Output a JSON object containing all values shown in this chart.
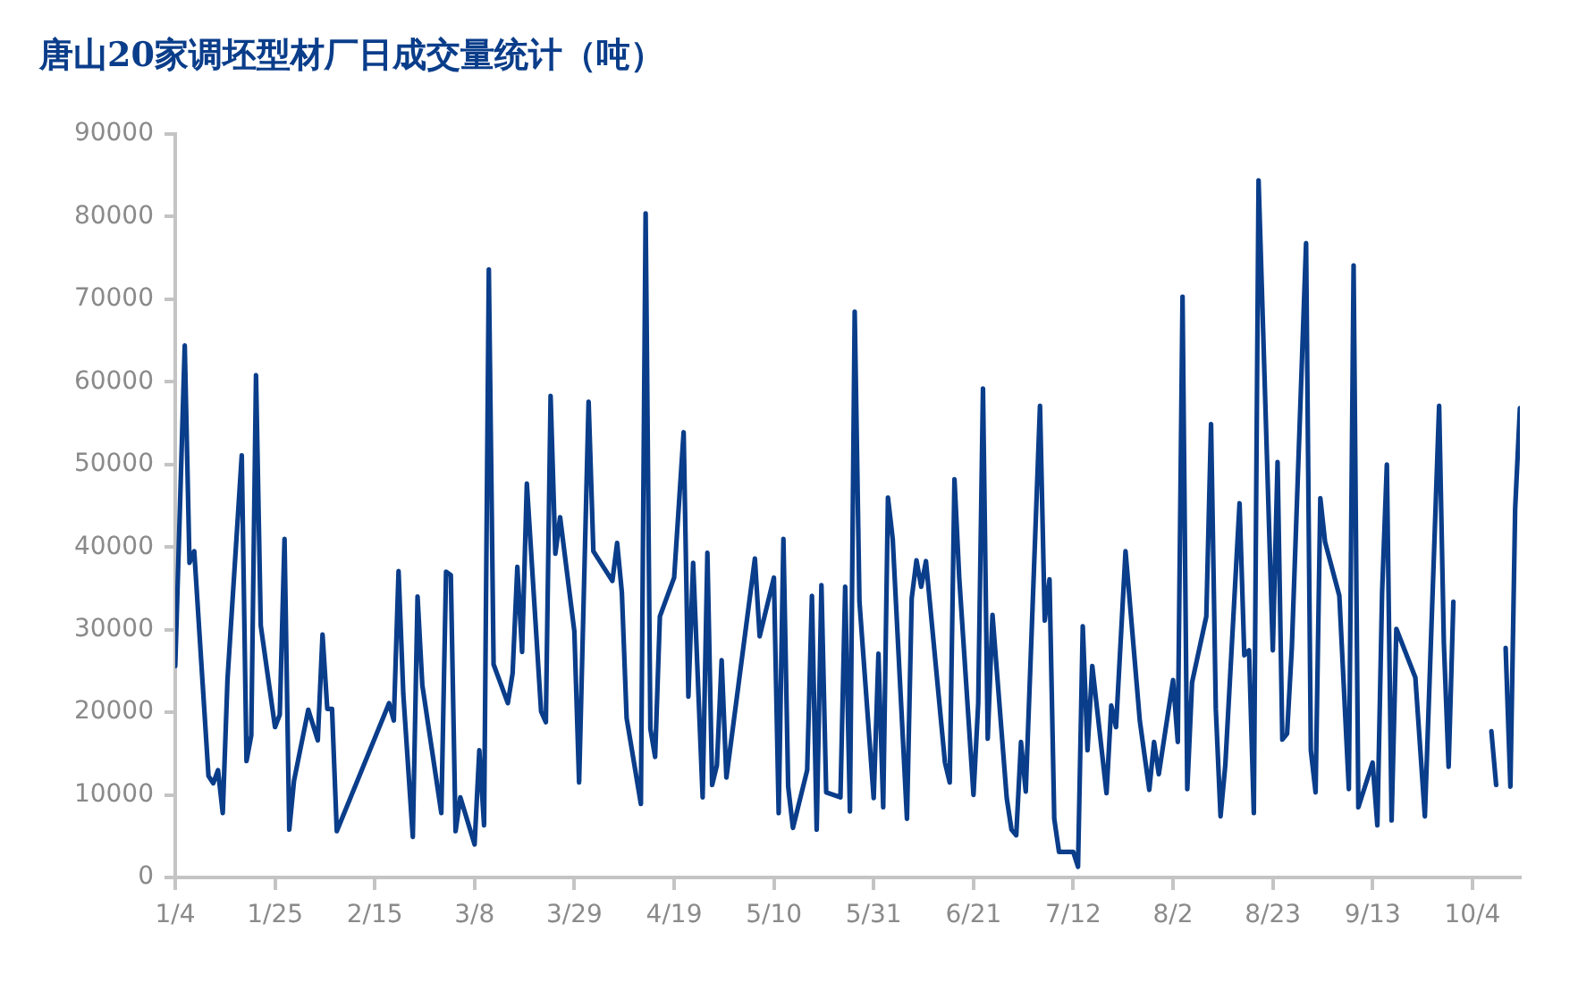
{
  "chart_data": {
    "type": "line",
    "title": "唐山20家调坯型材厂日成交量统计（吨）",
    "x": [
      "--01-04",
      "--01-06",
      "--01-07",
      "--01-08",
      "--01-11",
      "--01-12",
      "--01-13",
      "--01-14",
      "--01-15",
      "--01-18",
      "--01-19",
      "--01-20",
      "--01-21",
      "--01-22",
      "--01-25",
      "--01-26",
      "--01-27",
      "--01-28",
      "--01-29",
      "--02-01",
      "--02-03",
      "--02-04",
      "--02-05",
      "--02-06",
      "--02-07",
      "--02-18",
      "--02-19",
      "--02-20",
      "--02-21",
      "--02-23",
      "--02-24",
      "--02-25",
      "--03-01",
      "--03-02",
      "--03-03",
      "--03-04",
      "--03-05",
      "--03-08",
      "--03-09",
      "--03-10",
      "--03-11",
      "--03-12",
      "--03-15",
      "--03-16",
      "--03-17",
      "--03-18",
      "--03-19",
      "--03-22",
      "--03-23",
      "--03-24",
      "--03-25",
      "--03-26",
      "--03-29",
      "--03-30",
      "--04-01",
      "--04-02",
      "--04-06",
      "--04-07",
      "--04-08",
      "--04-09",
      "--04-12",
      "--04-13",
      "--04-14",
      "--04-15",
      "--04-16",
      "--04-19",
      "--04-21",
      "--04-22",
      "--04-23",
      "--04-25",
      "--04-26",
      "--04-27",
      "--04-28",
      "--04-29",
      "--04-30",
      "--05-06",
      "--05-07",
      "--05-10",
      "--05-11",
      "--05-12",
      "--05-13",
      "--05-14",
      "--05-17",
      "--05-18",
      "--05-19",
      "--05-20",
      "--05-21",
      "--05-24",
      "--05-25",
      "--05-26",
      "--05-27",
      "--05-28",
      "--05-31",
      "--06-01",
      "--06-02",
      "--06-03",
      "--06-04",
      "--06-07",
      "--06-08",
      "--06-09",
      "--06-10",
      "--06-11",
      "--06-15",
      "--06-16",
      "--06-17",
      "--06-18",
      "--06-21",
      "--06-22",
      "--06-23",
      "--06-24",
      "--06-25",
      "--06-28",
      "--06-29",
      "--06-30",
      "--07-01",
      "--07-02",
      "--07-05",
      "--07-06",
      "--07-07",
      "--07-08",
      "--07-09",
      "--07-12",
      "--07-13",
      "--07-14",
      "--07-15",
      "--07-16",
      "--07-19",
      "--07-20",
      "--07-21",
      "--07-23",
      "--07-26",
      "--07-28",
      "--07-29",
      "--07-30",
      "--08-02",
      "--08-03",
      "--08-04",
      "--08-05",
      "--08-06",
      "--08-09",
      "--08-10",
      "--08-11",
      "--08-12",
      "--08-13",
      "--08-16",
      "--08-17",
      "--08-18",
      "--08-19",
      "--08-20",
      "--08-23",
      "--08-24",
      "--08-25",
      "--08-26",
      "--08-27",
      "--08-30",
      "--08-31",
      "--09-01",
      "--09-02",
      "--09-03",
      "--09-06",
      "--09-08",
      "--09-09",
      "--09-10",
      "--09-13",
      "--09-14",
      "--09-15",
      "--09-16",
      "--09-17",
      "--09-18",
      "--09-22",
      "--09-24",
      "--09-27",
      "--09-28",
      "--09-29",
      "--09-30",
      "--10-01",
      "--10-08",
      "--10-09",
      "--10-10",
      "--10-11",
      "--10-12",
      "--10-13",
      "--10-14"
    ],
    "series": [
      {
        "color": "#0a3d8a",
        "values": [
          25600,
          64400,
          38100,
          39500,
          12300,
          11400,
          13000,
          7800,
          24000,
          51100,
          14100,
          17200,
          60800,
          30500,
          18200,
          19700,
          41000,
          5800,
          11700,
          20300,
          16600,
          29400,
          20400,
          20400,
          5600,
          21100,
          19000,
          37100,
          22200,
          4900,
          34000,
          23300,
          7800,
          37000,
          36600,
          5600,
          9700,
          4000,
          15400,
          6300,
          73600,
          25800,
          21100,
          24700,
          37600,
          27300,
          47700,
          20100,
          18800,
          58300,
          39200,
          43600,
          29800,
          11500,
          57600,
          39500,
          35900,
          40500,
          34500,
          19300,
          8900,
          80400,
          18000,
          14600,
          31600,
          36300,
          53900,
          21900,
          38100,
          9700,
          39300,
          11200,
          13600,
          26300,
          12100,
          38600,
          29200,
          36300,
          7800,
          41000,
          11000,
          6000,
          13000,
          34100,
          5800,
          35400,
          10300,
          9700,
          35200,
          8000,
          68500,
          33400,
          9600,
          27100,
          8500,
          46000,
          41000,
          7100,
          33800,
          38400,
          35200,
          38300,
          13900,
          11500,
          48200,
          36300,
          10000,
          21100,
          59200,
          16800,
          31800,
          9600,
          5800,
          5100,
          16400,
          10400,
          57100,
          31100,
          36100,
          7100,
          3100,
          3100,
          1300,
          30400,
          15400,
          25600,
          10200,
          20800,
          18200,
          39500,
          19000,
          10600,
          16400,
          12500,
          23900,
          16400,
          70300,
          10700,
          23600,
          31600,
          54900,
          20400,
          7400,
          13600,
          45300,
          26900,
          27500,
          7800,
          84400,
          27500,
          50300,
          16700,
          17400,
          27800,
          76800,
          15400,
          10300,
          45900,
          40600,
          34100,
          10700,
          74100,
          8500,
          13900,
          6300,
          34500,
          50000,
          6900,
          30100,
          24200,
          7400,
          57100,
          28300,
          13400,
          33400,
          null,
          17700,
          11200,
          null,
          27800,
          11000,
          44600,
          56800
        ]
      }
    ],
    "xlim": [
      "--01-04",
      "--10-14"
    ],
    "xticks": [
      {
        "value": "--01-04",
        "label": "1/4"
      },
      {
        "value": "--01-25",
        "label": "1/25"
      },
      {
        "value": "--02-15",
        "label": "2/15"
      },
      {
        "value": "--03-08",
        "label": "3/8"
      },
      {
        "value": "--03-29",
        "label": "3/29"
      },
      {
        "value": "--04-19",
        "label": "4/19"
      },
      {
        "value": "--05-10",
        "label": "5/10"
      },
      {
        "value": "--05-31",
        "label": "5/31"
      },
      {
        "value": "--06-21",
        "label": "6/21"
      },
      {
        "value": "--07-12",
        "label": "7/12"
      },
      {
        "value": "--08-02",
        "label": "8/2"
      },
      {
        "value": "--08-23",
        "label": "8/23"
      },
      {
        "value": "--09-13",
        "label": "9/13"
      },
      {
        "value": "--10-04",
        "label": "10/4"
      }
    ],
    "ylim": [
      0,
      90000
    ],
    "yticks": [
      0,
      10000,
      20000,
      30000,
      40000,
      50000,
      60000,
      70000,
      80000,
      90000
    ]
  }
}
